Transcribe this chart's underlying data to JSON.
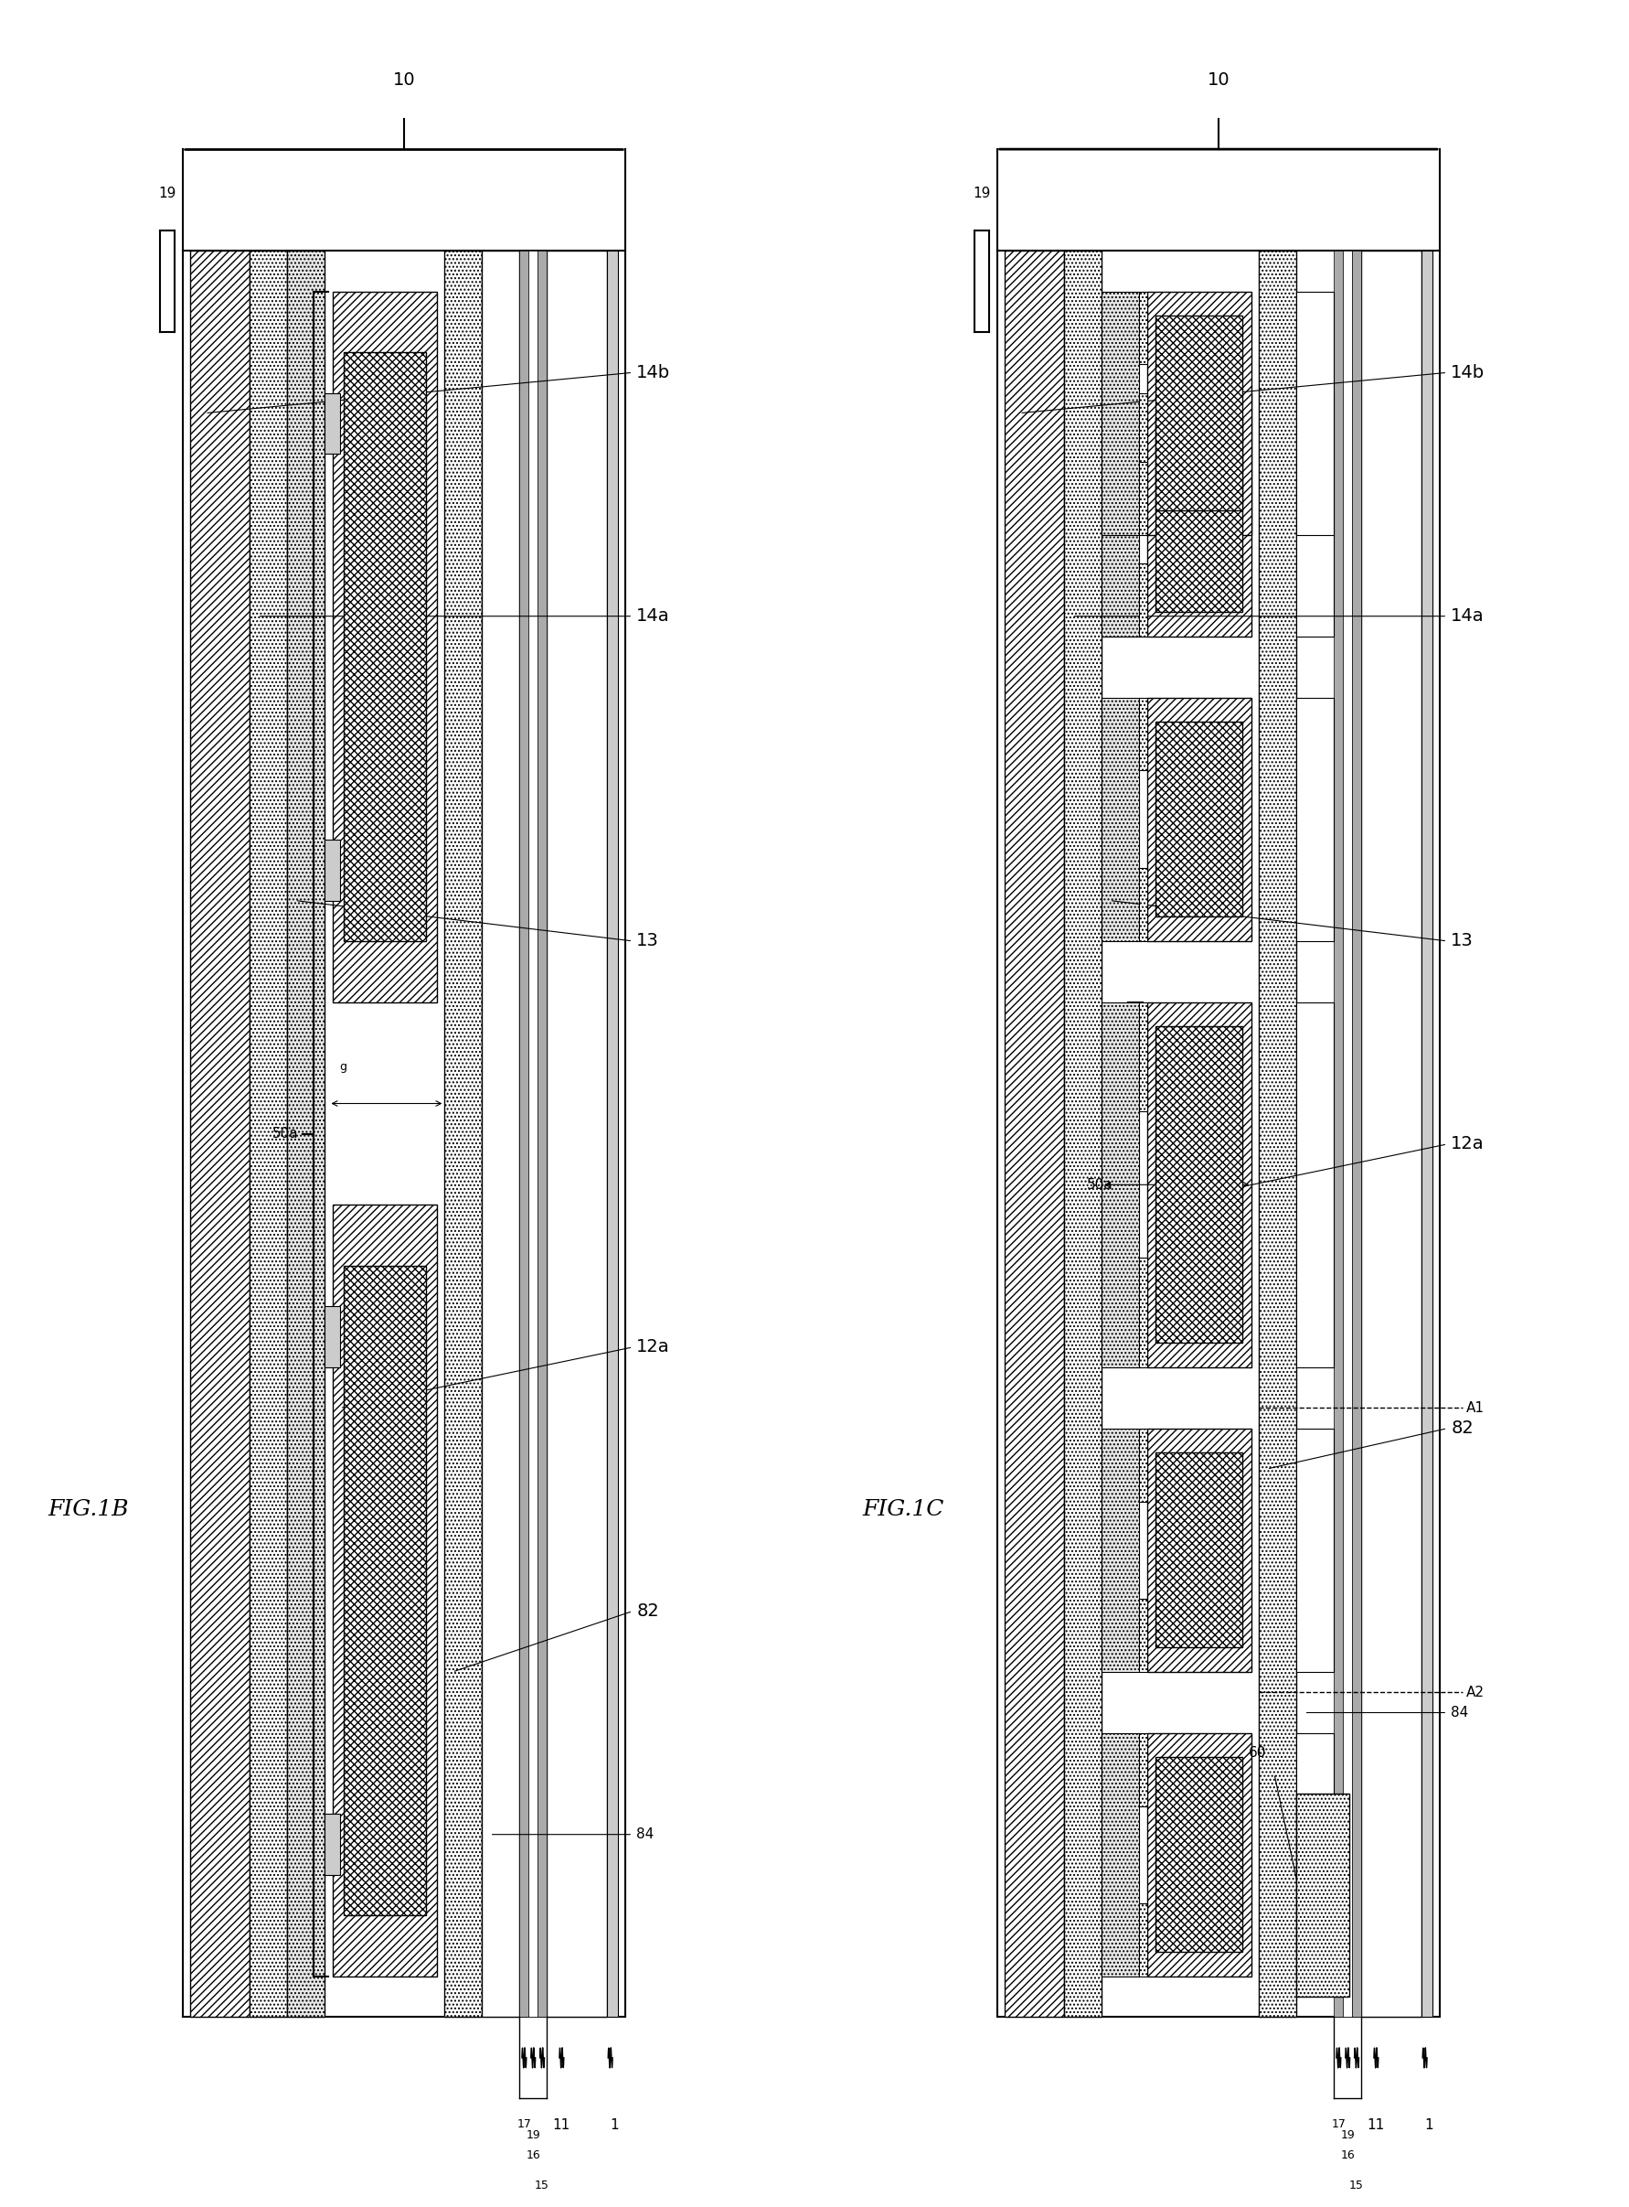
{
  "fig_width": 17.82,
  "fig_height": 24.13,
  "background": "#ffffff",
  "fig1b_title": "FIG.1B",
  "fig1c_title": "FIG.1C",
  "label_10": "10",
  "label_19": "19",
  "label_50a": "50a",
  "label_14b": "14b",
  "label_14a": "14a",
  "label_13": "13",
  "label_12a": "12a",
  "label_82": "82",
  "label_84": "84",
  "label_17": "17",
  "label_16": "16",
  "label_15": "15",
  "label_11": "11",
  "label_1": "1",
  "label_60": "60",
  "label_A1": "A1",
  "label_A2": "A2",
  "label_g": "g"
}
